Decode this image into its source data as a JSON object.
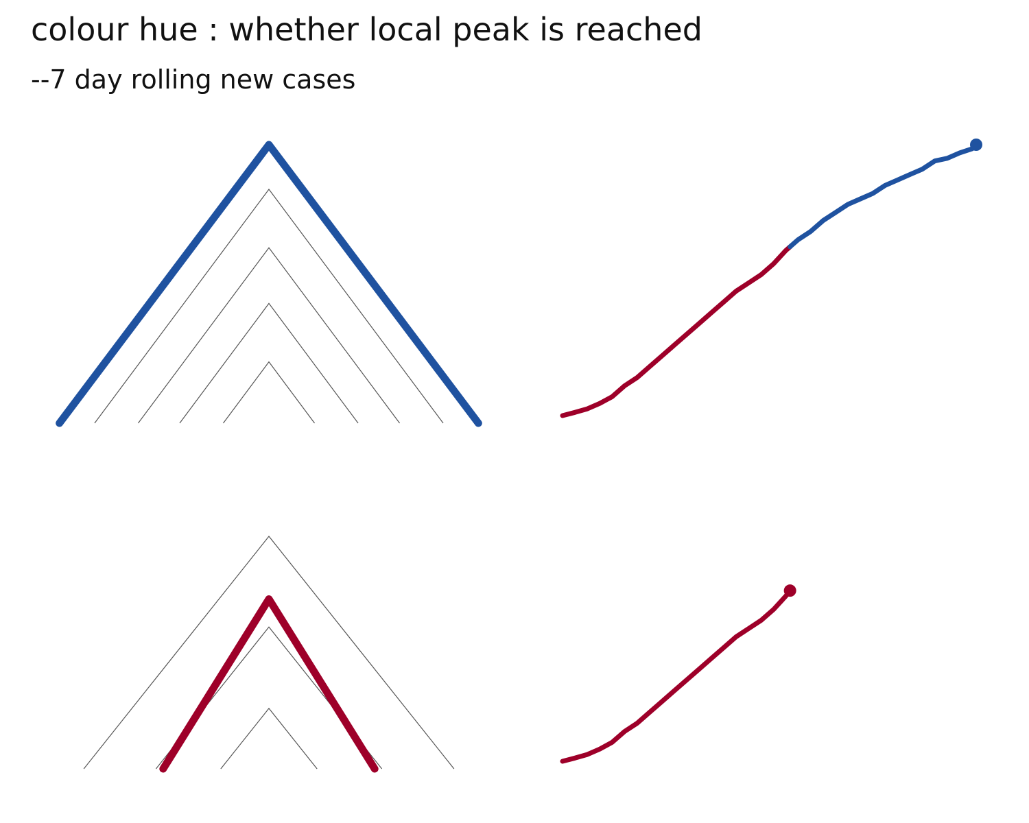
{
  "header": {
    "title": "colour hue : whether local peak is reached",
    "subtitle": "--7 day rolling new cases"
  },
  "colors": {
    "peak_reached": "#1f52a0",
    "not_reached": "#9e0029",
    "guide": "#555555"
  },
  "chart_data": [
    {
      "type": "line",
      "panel": "top-left",
      "title": "",
      "xlabel": "",
      "ylabel": "",
      "grid": false,
      "reference_peaks": [
        0.84,
        0.63,
        0.43,
        0.22
      ],
      "highlight_peak": 1.0,
      "highlight_status": "peak_reached"
    },
    {
      "type": "line",
      "panel": "top-right",
      "title": "",
      "xlabel": "",
      "ylabel": "",
      "grid": false,
      "x": [
        0,
        3,
        6,
        9,
        12,
        15,
        18,
        21,
        24,
        27,
        30,
        33,
        36,
        39,
        42,
        45,
        48,
        51,
        54,
        57,
        60,
        63,
        66,
        69,
        72,
        75,
        78,
        81,
        84,
        87,
        90,
        93,
        96,
        99,
        100
      ],
      "y": [
        0.0,
        0.012,
        0.025,
        0.045,
        0.07,
        0.11,
        0.14,
        0.18,
        0.22,
        0.26,
        0.3,
        0.34,
        0.38,
        0.42,
        0.46,
        0.49,
        0.52,
        0.56,
        0.61,
        0.65,
        0.68,
        0.72,
        0.75,
        0.78,
        0.8,
        0.82,
        0.85,
        0.87,
        0.89,
        0.91,
        0.94,
        0.95,
        0.97,
        0.985,
        1.0
      ],
      "ylim": [
        0,
        1
      ],
      "segments": [
        {
          "status": "not_reached",
          "from_x": 0,
          "to_x": 55
        },
        {
          "status": "peak_reached",
          "from_x": 55,
          "to_x": 100
        }
      ]
    },
    {
      "type": "line",
      "panel": "bottom-left",
      "title": "",
      "xlabel": "",
      "ylabel": "",
      "grid": false,
      "reference_peaks": [
        1.0,
        0.61,
        0.26
      ],
      "highlight_peak": 0.73,
      "highlight_status": "not_reached"
    },
    {
      "type": "line",
      "panel": "bottom-right",
      "title": "",
      "xlabel": "",
      "ylabel": "",
      "grid": false,
      "x": [
        0,
        3,
        6,
        9,
        12,
        15,
        18,
        21,
        24,
        27,
        30,
        33,
        36,
        39,
        42,
        45,
        48,
        51,
        54,
        55
      ],
      "y": [
        0.0,
        0.012,
        0.025,
        0.045,
        0.07,
        0.11,
        0.14,
        0.18,
        0.22,
        0.26,
        0.3,
        0.34,
        0.38,
        0.42,
        0.46,
        0.49,
        0.52,
        0.56,
        0.61,
        0.63
      ],
      "ylim": [
        0,
        1
      ],
      "segments": [
        {
          "status": "not_reached",
          "from_x": 0,
          "to_x": 55
        }
      ]
    }
  ]
}
